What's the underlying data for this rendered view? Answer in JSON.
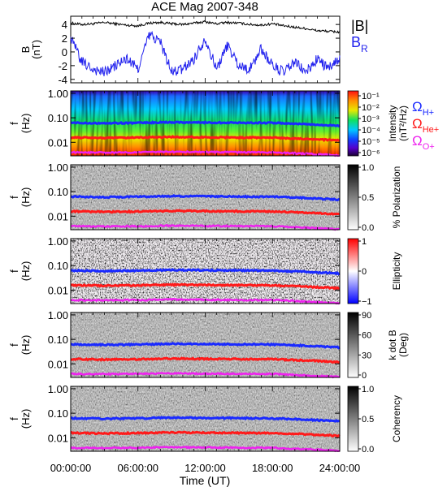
{
  "title": "ACE Mag 2007-348",
  "time_axis": {
    "label": "Time (UT)",
    "ticks": [
      "00:00:00",
      "06:00:00",
      "12:00:00",
      "18:00:00",
      "24:00:00"
    ]
  },
  "legends": {
    "b_total": "|B|",
    "b_r": "B",
    "b_r_sub": "R",
    "omega_h": "Ω",
    "omega_h_sub": "H+",
    "omega_he": "Ω",
    "omega_he_sub": "He+",
    "omega_o": "Ω",
    "omega_o_sub": "O+"
  },
  "colors": {
    "b_total": "#000000",
    "b_r": "#2222ee",
    "omega_h": "#1a2aff",
    "omega_he": "#ff1a1a",
    "omega_o": "#ee22ee"
  },
  "chart_data": [
    {
      "type": "line",
      "panel": "magnetic-field",
      "ylabel": "B",
      "ylabel_unit": "(nT)",
      "yticks": [
        "4",
        "2",
        "0",
        "-2",
        "-4"
      ],
      "ylim": [
        -4.5,
        5.2
      ],
      "xlim": [
        0,
        24
      ],
      "series": [
        {
          "name": "|B|",
          "x": [
            0,
            1,
            2,
            3,
            4,
            5,
            6,
            7,
            8,
            9,
            10,
            11,
            12,
            13,
            14,
            15,
            16,
            17,
            18,
            19,
            20,
            21,
            22,
            23,
            24
          ],
          "values": [
            4.2,
            4.0,
            4.1,
            4.3,
            4.1,
            3.9,
            3.8,
            4.2,
            4.3,
            4.1,
            4.0,
            4.2,
            4.4,
            4.1,
            4.3,
            4.2,
            4.0,
            3.9,
            4.1,
            3.8,
            3.6,
            3.4,
            3.1,
            3.0,
            2.9
          ]
        },
        {
          "name": "B_R",
          "x": [
            0,
            1,
            2,
            3,
            4,
            5,
            6,
            7,
            8,
            9,
            10,
            11,
            12,
            13,
            14,
            15,
            16,
            17,
            18,
            19,
            20,
            21,
            22,
            23,
            24
          ],
          "values": [
            2.0,
            -1.5,
            -2.5,
            -3.0,
            -2.0,
            -1.0,
            -2.5,
            2.5,
            1.5,
            -3.0,
            -2.5,
            -1.0,
            2.0,
            -2.5,
            1.0,
            -2.0,
            -2.5,
            0.5,
            -2.0,
            -3.0,
            -1.5,
            -3.0,
            -1.0,
            -2.5,
            -1.0
          ]
        }
      ]
    },
    {
      "type": "heatmap",
      "panel": "intensity",
      "ylabel": "f",
      "ylabel_unit": "(Hz)",
      "yticks": [
        "1.00",
        "0.10",
        "0.01"
      ],
      "colorbar_label": "Intensity",
      "colorbar_unit": "(nT²/Hz)",
      "colorbar_ticks": [
        "10⁻¹",
        "10⁻²",
        "10⁻³",
        "10⁻⁴",
        "10⁻⁵",
        "10⁻⁶"
      ],
      "colorbar": "rainbow"
    },
    {
      "type": "heatmap",
      "panel": "polarization",
      "ylabel": "f",
      "ylabel_unit": "(Hz)",
      "yticks": [
        "1.00",
        "0.10",
        "0.01"
      ],
      "colorbar_label": "% Polarization",
      "colorbar_ticks": [
        "1.0",
        "0.5",
        "0.0"
      ],
      "colorbar": "gray"
    },
    {
      "type": "heatmap",
      "panel": "ellipticity",
      "ylabel": "f",
      "ylabel_unit": "(Hz)",
      "yticks": [
        "1.00",
        "0.10",
        "0.01"
      ],
      "colorbar_label": "Ellipticity",
      "colorbar_ticks": [
        "1",
        "0",
        "−1"
      ],
      "colorbar": "blue-white-red"
    },
    {
      "type": "heatmap",
      "panel": "k-dot-b",
      "ylabel": "f",
      "ylabel_unit": "(Hz)",
      "yticks": [
        "1.00",
        "0.10",
        "0.01"
      ],
      "colorbar_label": "k dot B",
      "colorbar_unit": "(Deg)",
      "colorbar_ticks": [
        "90",
        "60",
        "30",
        "0"
      ],
      "colorbar": "gray"
    },
    {
      "type": "heatmap",
      "panel": "coherency",
      "ylabel": "f",
      "ylabel_unit": "(Hz)",
      "yticks": [
        "1.00",
        "0.10",
        "0.01"
      ],
      "colorbar_label": "Coherency",
      "colorbar_ticks": [
        "1.0",
        "0.5",
        "0.0"
      ],
      "colorbar": "gray"
    },
    {
      "type": "line",
      "panel": "gyrofrequency-overlay",
      "xlim": [
        0,
        24
      ],
      "series": [
        {
          "name": "Ω_H+",
          "x": [
            0,
            3,
            6,
            9,
            12,
            15,
            18,
            21,
            24
          ],
          "values": [
            0.063,
            0.06,
            0.062,
            0.066,
            0.064,
            0.063,
            0.062,
            0.055,
            0.047
          ]
        },
        {
          "name": "Ω_He+",
          "x": [
            0,
            3,
            6,
            9,
            12,
            15,
            18,
            21,
            24
          ],
          "values": [
            0.0157,
            0.015,
            0.0155,
            0.0165,
            0.016,
            0.0157,
            0.0155,
            0.0138,
            0.0118
          ]
        },
        {
          "name": "Ω_O+",
          "x": [
            0,
            3,
            6,
            9,
            12,
            15,
            18,
            21,
            24
          ],
          "values": [
            0.0039,
            0.0038,
            0.0039,
            0.0041,
            0.004,
            0.0039,
            0.0039,
            0.0034,
            0.0029
          ]
        }
      ]
    }
  ]
}
